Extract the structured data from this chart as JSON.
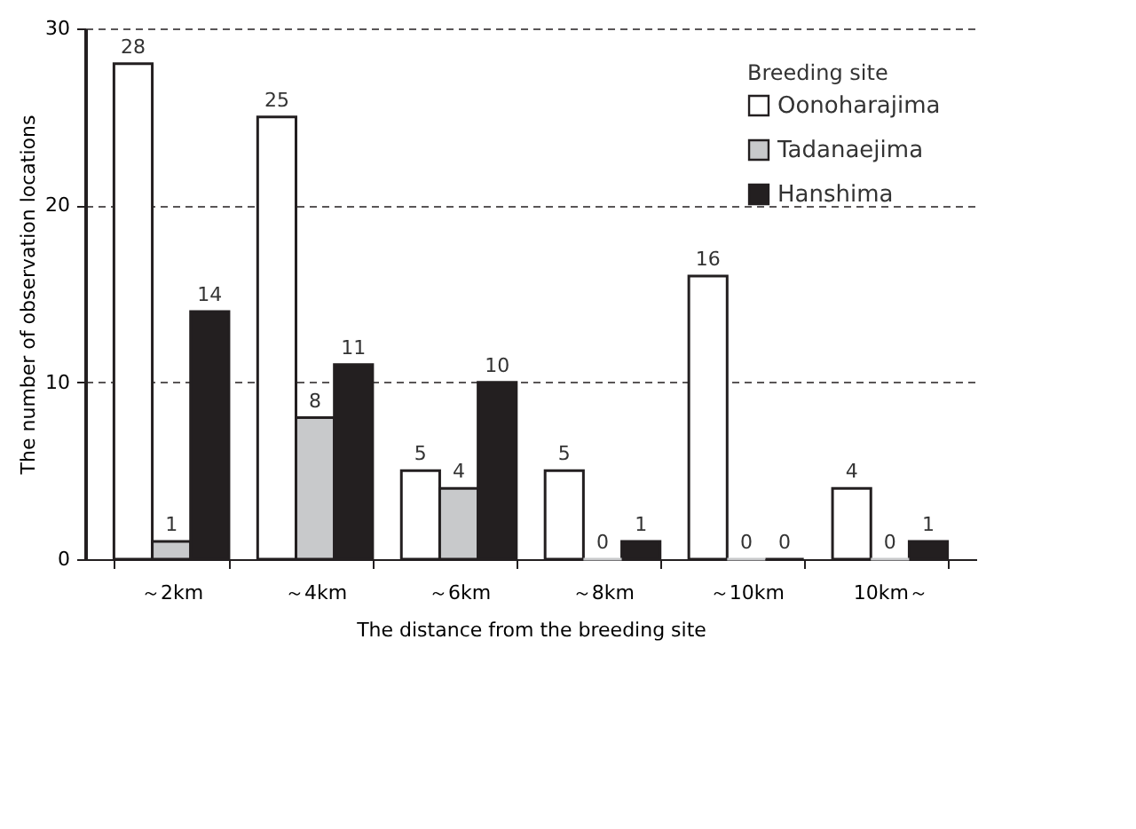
{
  "chart_data": {
    "type": "bar",
    "xlabel": "The distance from the breeding site",
    "ylabel": "The number of observation locations",
    "legend_title": "Breeding site",
    "categories": [
      "～2km",
      "～4km",
      "～6km",
      "～8km",
      "～10km",
      "10km～"
    ],
    "series": [
      {
        "name": "Oonoharajima",
        "color": "#ffffff",
        "values": [
          28,
          25,
          5,
          5,
          16,
          4
        ]
      },
      {
        "name": "Tadanaejima",
        "color": "#c8c9cb",
        "values": [
          1,
          8,
          4,
          0,
          0,
          0
        ]
      },
      {
        "name": "Hanshima",
        "color": "#231f20",
        "values": [
          14,
          11,
          10,
          1,
          0,
          1
        ]
      }
    ],
    "ylim": [
      0,
      30
    ],
    "yticks": [
      0,
      10,
      20,
      30
    ],
    "grid": "y",
    "legend": "top right",
    "data_labels": true
  }
}
